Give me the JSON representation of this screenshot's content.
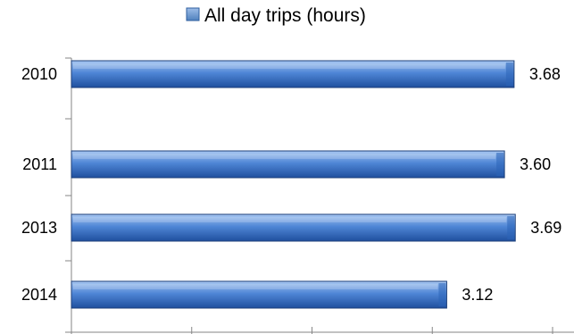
{
  "chart_data": {
    "type": "bar",
    "orientation": "horizontal",
    "categories": [
      "2010",
      "2011",
      "2013",
      "2014"
    ],
    "series": [
      {
        "name": "All day trips (hours)",
        "values": [
          3.68,
          3.6,
          3.69,
          3.12
        ],
        "data_labels": [
          "3.68",
          "3.60",
          "3.69",
          "3.12"
        ]
      }
    ],
    "xlim": [
      0,
      4
    ],
    "grid": false,
    "legend_position": "top",
    "colors": {
      "bar_top": "#a9c8f2",
      "bar_mid": "#4f86d6",
      "bar_bottom": "#1f4f9e",
      "bar_stroke": "#1c3f7a",
      "axis": "#868686",
      "legend_swatch": "#4f81bd"
    }
  }
}
